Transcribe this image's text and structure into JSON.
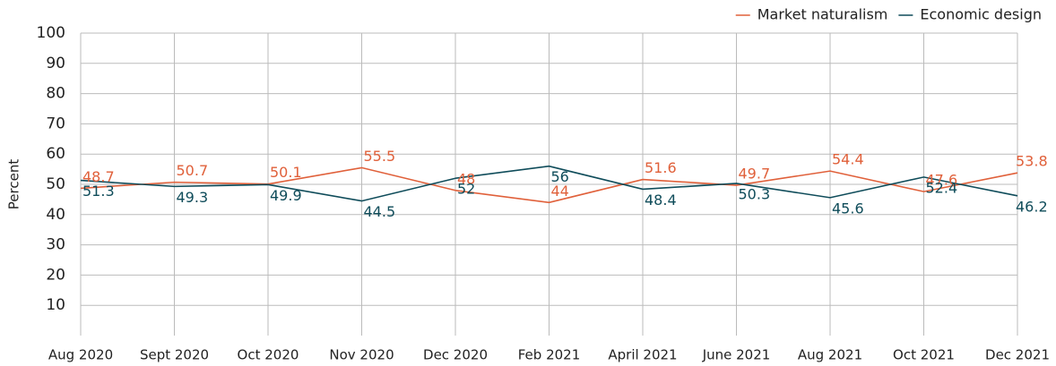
{
  "chart_data": {
    "type": "line",
    "y_label": "Percent",
    "categories": [
      "Aug 2020",
      "Sept 2020",
      "Oct 2020",
      "Nov 2020",
      "Dec 2020",
      "Feb 2021",
      "April 2021",
      "June 2021",
      "Aug 2021",
      "Oct 2021",
      "Dec 2021"
    ],
    "series": [
      {
        "name": "Market naturalism",
        "color": "#e0603a",
        "values": [
          48.7,
          50.7,
          50.1,
          55.5,
          48,
          44,
          51.6,
          49.7,
          54.4,
          47.6,
          53.8
        ]
      },
      {
        "name": "Economic design",
        "color": "#0f4c5a",
        "values": [
          51.3,
          49.3,
          49.9,
          44.5,
          52,
          56,
          48.4,
          50.3,
          45.6,
          52.4,
          46.2
        ]
      }
    ],
    "ylim": [
      0,
      100
    ],
    "yticks": [
      10,
      20,
      30,
      40,
      50,
      60,
      70,
      80,
      90,
      100
    ],
    "grid": true,
    "legend": "top-right",
    "data_labels": true
  }
}
